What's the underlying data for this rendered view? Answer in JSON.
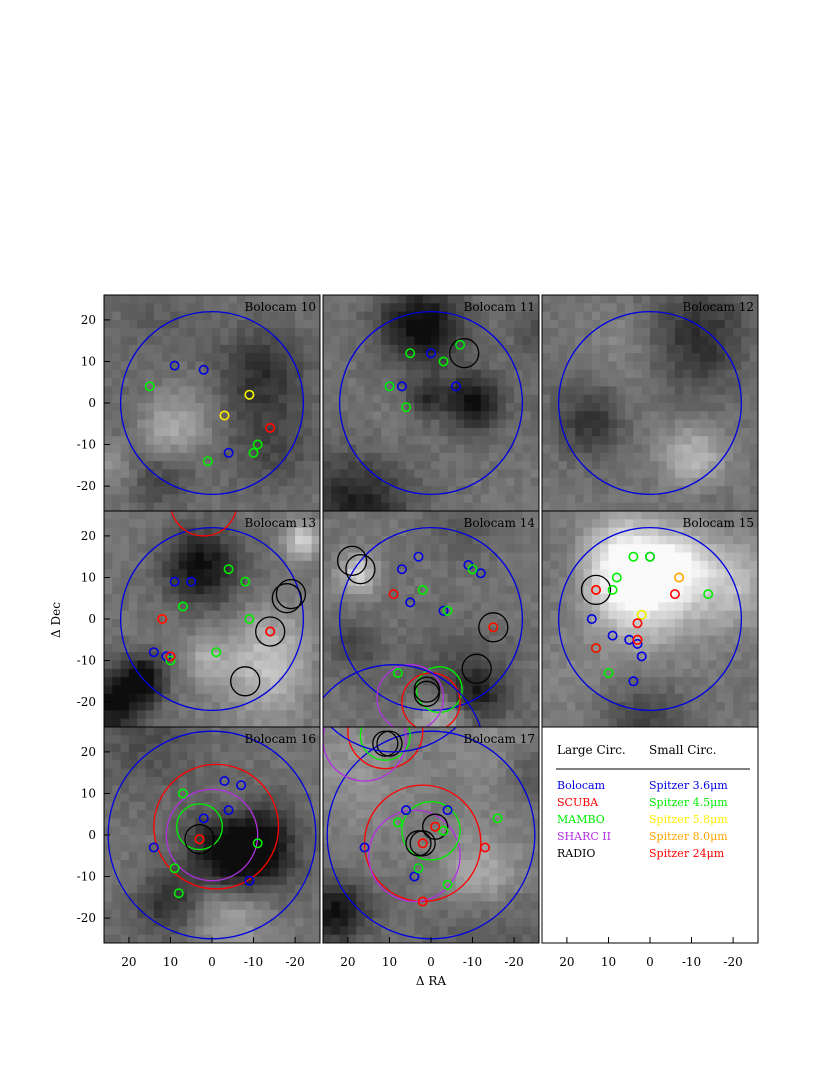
{
  "figure": {
    "ylabel": "Δ Dec",
    "xlabel": "Δ RA",
    "x_ticks": [
      "20",
      "10",
      "0",
      "-10",
      "-20"
    ],
    "y_ticks": [
      "20",
      "10",
      "0",
      "-10",
      "-20"
    ],
    "xlim": [
      26,
      -26
    ],
    "ylim": [
      -26,
      26
    ]
  },
  "legend": {
    "large_header": "Large Circ.",
    "small_header": "Small Circ.",
    "rows": [
      {
        "large": "Bolocam",
        "large_color": "#0000e0",
        "small": "Spitzer 3.6μm",
        "small_color": "#0000e0"
      },
      {
        "large": "SCUBA",
        "large_color": "#ff0000",
        "small": "Spitzer 4.5μm",
        "small_color": "#00ee00"
      },
      {
        "large": "MAMBO",
        "large_color": "#00ee00",
        "small": "Spitzer 5.8μm",
        "small_color": "#ffee00"
      },
      {
        "large": "SHARC II",
        "large_color": "#b030e0",
        "small": "Spitzer 8.0μm",
        "small_color": "#ffa500"
      },
      {
        "large": "RADIO",
        "large_color": "#000000",
        "small": "Spitzer 24μm",
        "small_color": "#ff0000"
      }
    ]
  },
  "chart_data": [
    {
      "type": "scatter",
      "title": "Bolocam 10",
      "large_circles": [
        {
          "instrument": "Bolocam",
          "x": 0,
          "y": 0,
          "r": 22
        }
      ],
      "small_circles": [
        {
          "band": "Spitzer 3.6μm",
          "points": [
            [
              9,
              9
            ],
            [
              2,
              8
            ],
            [
              -4,
              -12
            ],
            [
              -14,
              -6
            ]
          ]
        },
        {
          "band": "Spitzer 4.5μm",
          "points": [
            [
              15,
              4
            ],
            [
              -9,
              2
            ],
            [
              -11,
              -10
            ],
            [
              -10,
              -12
            ],
            [
              1,
              -14
            ]
          ]
        },
        {
          "band": "Spitzer 5.8μm",
          "points": [
            [
              -9,
              2
            ],
            [
              -3,
              -3
            ]
          ]
        },
        {
          "band": "Spitzer 8.0μm",
          "points": [
            [
              -14,
              -6
            ]
          ]
        },
        {
          "band": "Spitzer 24μm",
          "points": [
            [
              -14,
              -6
            ]
          ]
        }
      ]
    },
    {
      "type": "scatter",
      "title": "Bolocam 11",
      "large_circles": [
        {
          "instrument": "Bolocam",
          "x": 0,
          "y": 0,
          "r": 22
        },
        {
          "instrument": "RADIO",
          "x": -8,
          "y": 12,
          "r": 3.5
        }
      ],
      "small_circles": [
        {
          "band": "Spitzer 3.6μm",
          "points": [
            [
              0,
              12
            ],
            [
              -7,
              14
            ],
            [
              10,
              4
            ],
            [
              7,
              4
            ],
            [
              -6,
              4
            ]
          ]
        },
        {
          "band": "Spitzer 4.5μm",
          "points": [
            [
              5,
              12
            ],
            [
              -3,
              10
            ],
            [
              -7,
              14
            ],
            [
              10,
              4
            ],
            [
              6,
              -1
            ]
          ]
        }
      ]
    },
    {
      "type": "scatter",
      "title": "Bolocam 12",
      "large_circles": [
        {
          "instrument": "Bolocam",
          "x": 0,
          "y": 0,
          "r": 22
        }
      ],
      "small_circles": []
    },
    {
      "type": "scatter",
      "title": "Bolocam 13",
      "large_circles": [
        {
          "instrument": "Bolocam",
          "x": 0,
          "y": 0,
          "r": 22
        },
        {
          "instrument": "SCUBA",
          "x": 2,
          "y": 28,
          "r": 8
        },
        {
          "instrument": "RADIO",
          "x": -14,
          "y": -3,
          "r": 3.5
        },
        {
          "instrument": "RADIO",
          "x": -18,
          "y": 5,
          "r": 3.5
        },
        {
          "instrument": "RADIO",
          "x": -19,
          "y": 6,
          "r": 3.5
        },
        {
          "instrument": "RADIO",
          "x": -8,
          "y": -15,
          "r": 3.5
        }
      ],
      "small_circles": [
        {
          "band": "Spitzer 3.6μm",
          "points": [
            [
              9,
              9
            ],
            [
              5,
              9
            ],
            [
              14,
              -8
            ],
            [
              11,
              -9
            ],
            [
              -14,
              -3
            ]
          ]
        },
        {
          "band": "Spitzer 4.5μm",
          "points": [
            [
              7,
              3
            ],
            [
              -4,
              12
            ],
            [
              -8,
              9
            ],
            [
              -9,
              0
            ],
            [
              10,
              -10
            ],
            [
              -1,
              -8
            ]
          ]
        },
        {
          "band": "Spitzer 5.8μm",
          "points": [
            [
              12,
              0
            ]
          ]
        },
        {
          "band": "Spitzer 8.0μm",
          "points": [
            [
              12,
              0
            ],
            [
              -14,
              -3
            ]
          ]
        },
        {
          "band": "Spitzer 24μm",
          "points": [
            [
              12,
              0
            ],
            [
              10,
              -9
            ],
            [
              -14,
              -3
            ]
          ]
        }
      ]
    },
    {
      "type": "scatter",
      "title": "Bolocam 14",
      "large_circles": [
        {
          "instrument": "Bolocam",
          "x": 0,
          "y": 0,
          "r": 22
        },
        {
          "instrument": "MAMBO",
          "x": -2,
          "y": -17,
          "r": 5.5
        },
        {
          "instrument": "SCUBA",
          "x": 0,
          "y": -20,
          "r": 7
        },
        {
          "instrument": "SHARC II",
          "x": 5,
          "y": -19,
          "r": 8
        },
        {
          "instrument": "Bolocam",
          "x": 9,
          "y": -33,
          "r": 22
        },
        {
          "instrument": "RADIO",
          "x": 19,
          "y": 14,
          "r": 3.5
        },
        {
          "instrument": "RADIO",
          "x": 17,
          "y": 12,
          "r": 3.5
        },
        {
          "instrument": "RADIO",
          "x": -15,
          "y": -2,
          "r": 3.5
        },
        {
          "instrument": "RADIO",
          "x": -11,
          "y": -12,
          "r": 3.5
        },
        {
          "instrument": "RADIO",
          "x": 1,
          "y": -18,
          "r": 3
        },
        {
          "instrument": "RADIO",
          "x": 1,
          "y": -17,
          "r": 3
        }
      ],
      "small_circles": [
        {
          "band": "Spitzer 3.6μm",
          "points": [
            [
              3,
              15
            ],
            [
              7,
              12
            ],
            [
              5,
              4
            ],
            [
              -9,
              13
            ],
            [
              -12,
              11
            ],
            [
              -3,
              2
            ]
          ]
        },
        {
          "band": "Spitzer 4.5μm",
          "points": [
            [
              2,
              7
            ],
            [
              -10,
              12
            ],
            [
              -4,
              2
            ],
            [
              -15,
              -2
            ],
            [
              8,
              -13
            ]
          ]
        },
        {
          "band": "Spitzer 8.0μm",
          "points": [
            [
              -15,
              -2
            ]
          ]
        },
        {
          "band": "Spitzer 24μm",
          "points": [
            [
              9,
              6
            ],
            [
              -15,
              -2
            ]
          ]
        }
      ]
    },
    {
      "type": "scatter",
      "title": "Bolocam 15",
      "large_circles": [
        {
          "instrument": "Bolocam",
          "x": 0,
          "y": 0,
          "r": 22
        },
        {
          "instrument": "RADIO",
          "x": 13,
          "y": 7,
          "r": 3.5
        }
      ],
      "small_circles": [
        {
          "band": "Spitzer 3.6μm",
          "points": [
            [
              0,
              15
            ],
            [
              14,
              0
            ],
            [
              9,
              -4
            ],
            [
              5,
              -5
            ],
            [
              3,
              -6
            ],
            [
              2,
              -9
            ],
            [
              4,
              -15
            ]
          ]
        },
        {
          "band": "Spitzer 4.5μm",
          "points": [
            [
              4,
              15
            ],
            [
              0,
              15
            ],
            [
              8,
              10
            ],
            [
              9,
              7
            ],
            [
              2,
              1
            ],
            [
              13,
              -7
            ],
            [
              10,
              -13
            ],
            [
              -14,
              6
            ]
          ]
        },
        {
          "band": "Spitzer 5.8μm",
          "points": [
            [
              2,
              1
            ]
          ]
        },
        {
          "band": "Spitzer 8.0μm",
          "points": [
            [
              13,
              7
            ],
            [
              -7,
              10
            ],
            [
              3,
              -5
            ]
          ]
        },
        {
          "band": "Spitzer 24μm",
          "points": [
            [
              13,
              7
            ],
            [
              -6,
              6
            ],
            [
              13,
              -7
            ],
            [
              3,
              -1
            ],
            [
              3,
              -5
            ]
          ]
        }
      ]
    },
    {
      "type": "scatter",
      "title": "Bolocam 16",
      "large_circles": [
        {
          "instrument": "Bolocam",
          "x": 0,
          "y": 0,
          "r": 25
        },
        {
          "instrument": "SCUBA",
          "x": -1,
          "y": 2,
          "r": 15
        },
        {
          "instrument": "SHARC II",
          "x": 0,
          "y": 0,
          "r": 11
        },
        {
          "instrument": "MAMBO",
          "x": 3,
          "y": 2,
          "r": 5.5
        },
        {
          "instrument": "RADIO",
          "x": 3,
          "y": -1,
          "r": 3.5
        }
      ],
      "small_circles": [
        {
          "band": "Spitzer 3.6μm",
          "points": [
            [
              -3,
              13
            ],
            [
              -7,
              12
            ],
            [
              2,
              4
            ],
            [
              -4,
              6
            ],
            [
              14,
              -3
            ],
            [
              -9,
              -11
            ]
          ]
        },
        {
          "band": "Spitzer 4.5μm",
          "points": [
            [
              7,
              10
            ],
            [
              -11,
              -2
            ],
            [
              9,
              -8
            ],
            [
              8,
              -14
            ]
          ]
        },
        {
          "band": "Spitzer 8.0μm",
          "points": [
            [
              3,
              -1
            ]
          ]
        },
        {
          "band": "Spitzer 24μm",
          "points": [
            [
              3,
              -1
            ]
          ]
        }
      ]
    },
    {
      "type": "scatter",
      "title": "Bolocam 17",
      "large_circles": [
        {
          "instrument": "Bolocam",
          "x": 0,
          "y": 0,
          "r": 25
        },
        {
          "instrument": "SCUBA",
          "x": 2,
          "y": -2,
          "r": 14
        },
        {
          "instrument": "SHARC II",
          "x": 4,
          "y": -5,
          "r": 11
        },
        {
          "instrument": "MAMBO",
          "x": 0,
          "y": 1,
          "r": 7
        },
        {
          "instrument": "RADIO",
          "x": 2,
          "y": -2,
          "r": 3
        },
        {
          "instrument": "RADIO",
          "x": 3,
          "y": -2,
          "r": 3
        },
        {
          "instrument": "RADIO",
          "x": -1,
          "y": 2,
          "r": 3
        },
        {
          "instrument": "SCUBA",
          "x": 11,
          "y": 25,
          "r": 9
        },
        {
          "instrument": "MAMBO",
          "x": 11,
          "y": 24,
          "r": 6
        },
        {
          "instrument": "SHARC II",
          "x": 16,
          "y": 23,
          "r": 10
        },
        {
          "instrument": "RADIO",
          "x": 11,
          "y": 22,
          "r": 3
        },
        {
          "instrument": "RADIO",
          "x": 10,
          "y": 22,
          "r": 3
        },
        {
          "instrument": "Bolocam",
          "x": 9,
          "y": 42,
          "r": 22
        }
      ],
      "small_circles": [
        {
          "band": "Spitzer 3.6μm",
          "points": [
            [
              6,
              6
            ],
            [
              16,
              -3
            ],
            [
              -4,
              6
            ],
            [
              3,
              -8
            ],
            [
              4,
              -10
            ]
          ]
        },
        {
          "band": "Spitzer 4.5μm",
          "points": [
            [
              -3,
              1
            ],
            [
              -16,
              4
            ],
            [
              3,
              -8
            ],
            [
              -4,
              -12
            ],
            [
              8,
              3
            ]
          ]
        },
        {
          "band": "Spitzer 8.0μm",
          "points": [
            [
              -1,
              2
            ],
            [
              2,
              -2
            ],
            [
              2,
              -16
            ]
          ]
        },
        {
          "band": "Spitzer 24μm",
          "points": [
            [
              -1,
              2
            ],
            [
              2,
              -2
            ],
            [
              -13,
              -3
            ],
            [
              2,
              -16
            ]
          ]
        }
      ]
    }
  ]
}
